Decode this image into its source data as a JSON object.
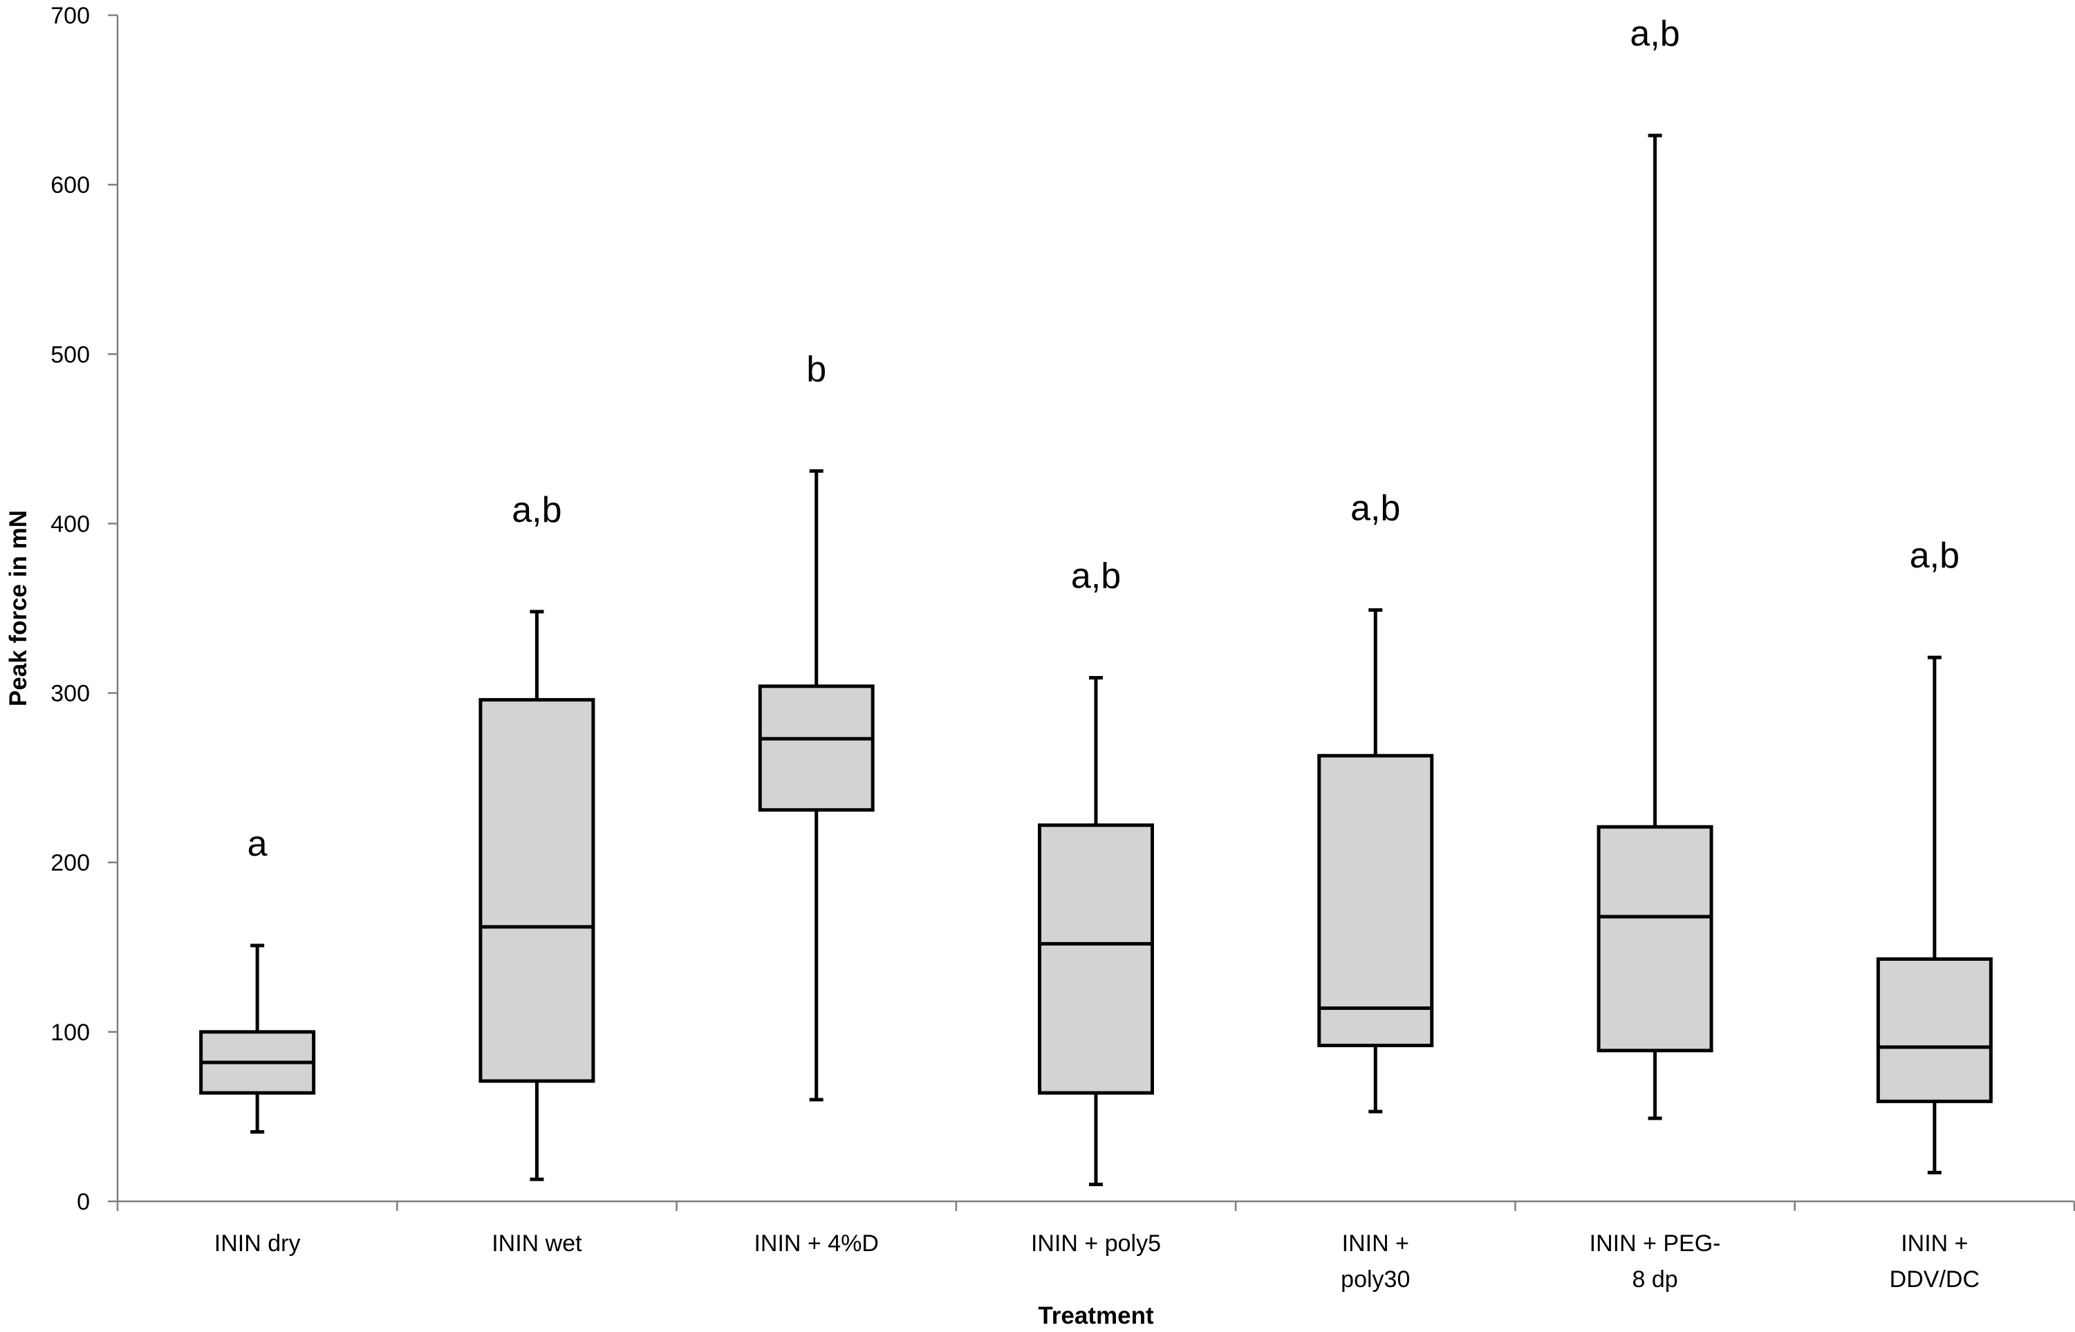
{
  "chart_data": {
    "type": "box",
    "xlabel": "Treatment",
    "ylabel": "Peak force in mN",
    "ylim": [
      0,
      700
    ],
    "yticks": [
      0,
      100,
      200,
      300,
      400,
      500,
      600,
      700
    ],
    "grid": false,
    "legend": "none",
    "box_fill": "#d3d3d3",
    "categories": [
      [
        "ININ dry"
      ],
      [
        "ININ wet"
      ],
      [
        "ININ + 4%D"
      ],
      [
        "ININ + poly5"
      ],
      [
        "ININ  +",
        "poly30"
      ],
      [
        "ININ + PEG-",
        "8 dp"
      ],
      [
        "ININ +",
        "DDV/DC"
      ]
    ],
    "boxes": [
      {
        "min": 41,
        "q1": 64,
        "median": 82,
        "q3": 100,
        "max": 151,
        "label": "a"
      },
      {
        "min": 13,
        "q1": 71,
        "median": 162,
        "q3": 296,
        "max": 348,
        "label": "a,b"
      },
      {
        "min": 60,
        "q1": 231,
        "median": 273,
        "q3": 304,
        "max": 431,
        "label": "b"
      },
      {
        "min": 10,
        "q1": 64,
        "median": 152,
        "q3": 222,
        "max": 309,
        "label": "a,b"
      },
      {
        "min": 53,
        "q1": 92,
        "median": 114,
        "q3": 263,
        "max": 349,
        "label": "a,b"
      },
      {
        "min": 49,
        "q1": 89,
        "median": 168,
        "q3": 221,
        "max": 629,
        "label": "a,b"
      },
      {
        "min": 17,
        "q1": 59,
        "median": 91,
        "q3": 143,
        "max": 321,
        "label": "a,b"
      }
    ]
  }
}
